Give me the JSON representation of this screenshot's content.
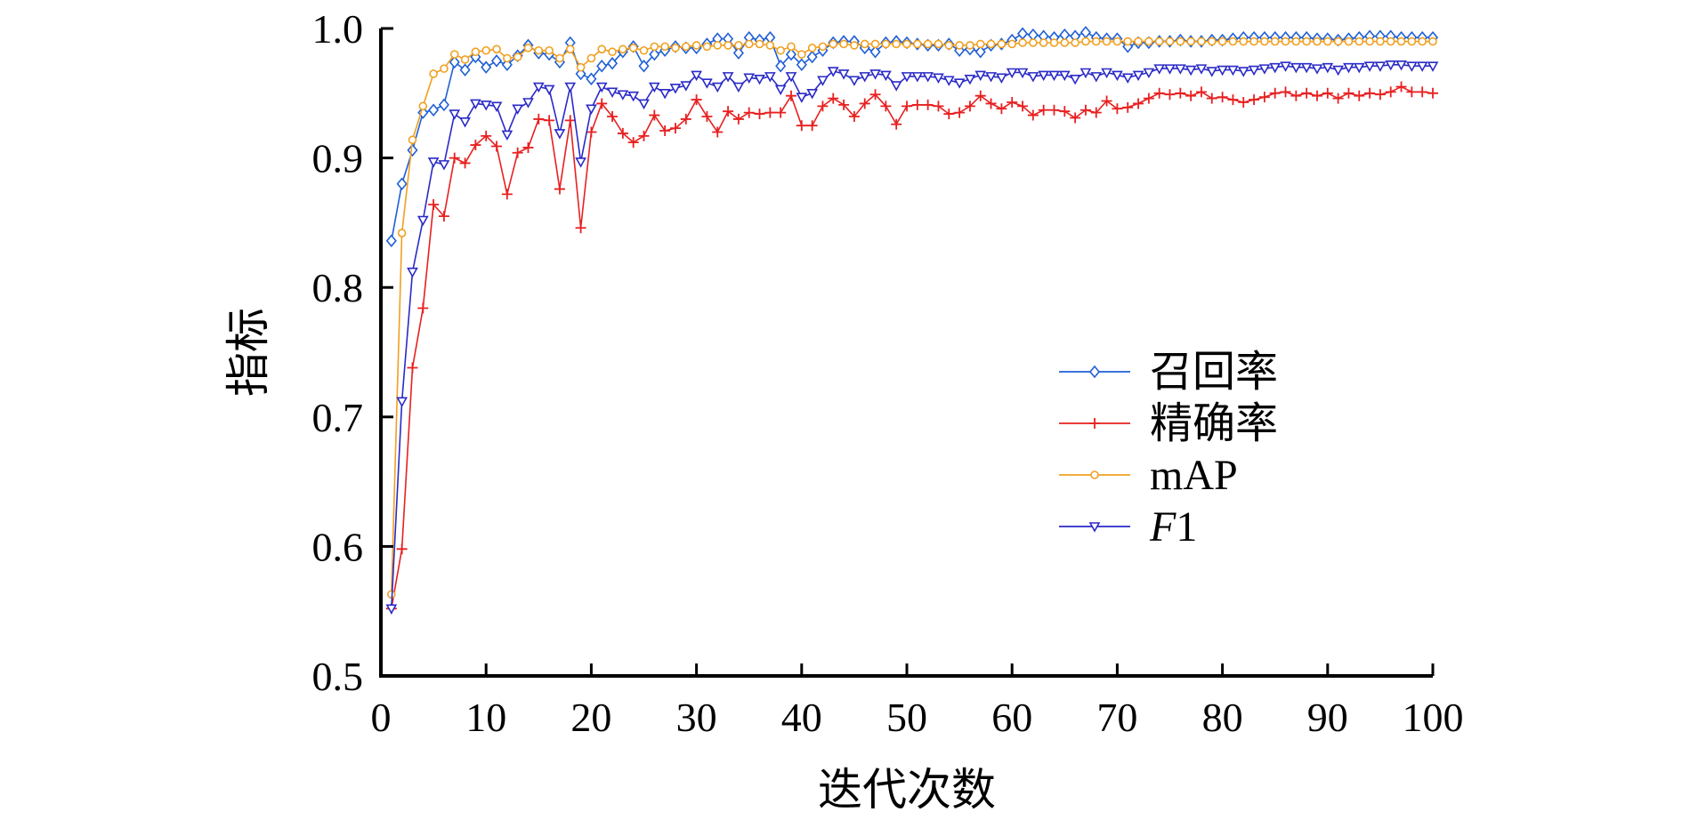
{
  "chart_data": {
    "type": "line",
    "title": "",
    "xlabel": "迭代次数",
    "ylabel": "指标",
    "xlim": [
      0,
      100
    ],
    "ylim": [
      0.5,
      1.0
    ],
    "x_ticks": [
      "0",
      "10",
      "20",
      "30",
      "40",
      "50",
      "60",
      "70",
      "80",
      "90",
      "100"
    ],
    "y_ticks": [
      "0.5",
      "0.6",
      "0.7",
      "0.8",
      "0.9",
      "1.0"
    ],
    "grid": false,
    "legend_position": "center-right",
    "x": [
      1,
      2,
      3,
      4,
      5,
      6,
      7,
      8,
      9,
      10,
      11,
      12,
      13,
      14,
      15,
      16,
      17,
      18,
      19,
      20,
      21,
      22,
      23,
      24,
      25,
      26,
      27,
      28,
      29,
      30,
      31,
      32,
      33,
      34,
      35,
      36,
      37,
      38,
      39,
      40,
      41,
      42,
      43,
      44,
      45,
      46,
      47,
      48,
      49,
      50,
      51,
      52,
      53,
      54,
      55,
      56,
      57,
      58,
      59,
      60,
      61,
      62,
      63,
      64,
      65,
      66,
      67,
      68,
      69,
      70,
      71,
      72,
      73,
      74,
      75,
      76,
      77,
      78,
      79,
      80,
      81,
      82,
      83,
      84,
      85,
      86,
      87,
      88,
      89,
      90,
      91,
      92,
      93,
      94,
      95,
      96,
      97,
      98,
      99,
      100
    ],
    "series": [
      {
        "name": "召回率",
        "color": "#1f5fd6",
        "marker": "diamond",
        "values": [
          0.836,
          0.88,
          0.906,
          0.935,
          0.937,
          0.941,
          0.974,
          0.968,
          0.978,
          0.97,
          0.975,
          0.972,
          0.979,
          0.987,
          0.981,
          0.98,
          0.974,
          0.989,
          0.965,
          0.961,
          0.971,
          0.973,
          0.982,
          0.986,
          0.971,
          0.98,
          0.983,
          0.986,
          0.985,
          0.985,
          0.988,
          0.992,
          0.992,
          0.981,
          0.993,
          0.991,
          0.993,
          0.971,
          0.98,
          0.972,
          0.978,
          0.983,
          0.989,
          0.99,
          0.99,
          0.985,
          0.982,
          0.989,
          0.99,
          0.989,
          0.988,
          0.987,
          0.987,
          0.988,
          0.983,
          0.984,
          0.982,
          0.987,
          0.988,
          0.991,
          0.996,
          0.995,
          0.994,
          0.993,
          0.995,
          0.994,
          0.997,
          0.993,
          0.992,
          0.992,
          0.986,
          0.989,
          0.989,
          0.99,
          0.99,
          0.991,
          0.99,
          0.99,
          0.991,
          0.991,
          0.992,
          0.993,
          0.993,
          0.993,
          0.993,
          0.993,
          0.993,
          0.993,
          0.992,
          0.992,
          0.991,
          0.992,
          0.993,
          0.994,
          0.994,
          0.994,
          0.993,
          0.993,
          0.993,
          0.993
        ]
      },
      {
        "name": "精确率",
        "color": "#e82020",
        "marker": "plus",
        "values": [
          0.552,
          0.598,
          0.738,
          0.784,
          0.864,
          0.855,
          0.9,
          0.896,
          0.91,
          0.917,
          0.909,
          0.872,
          0.904,
          0.908,
          0.93,
          0.929,
          0.876,
          0.929,
          0.846,
          0.92,
          0.942,
          0.932,
          0.919,
          0.912,
          0.917,
          0.933,
          0.921,
          0.923,
          0.93,
          0.945,
          0.932,
          0.92,
          0.936,
          0.93,
          0.935,
          0.934,
          0.935,
          0.935,
          0.948,
          0.925,
          0.925,
          0.94,
          0.946,
          0.941,
          0.932,
          0.942,
          0.949,
          0.94,
          0.926,
          0.94,
          0.941,
          0.941,
          0.94,
          0.934,
          0.935,
          0.94,
          0.948,
          0.942,
          0.938,
          0.943,
          0.94,
          0.933,
          0.937,
          0.937,
          0.936,
          0.931,
          0.937,
          0.935,
          0.944,
          0.938,
          0.939,
          0.942,
          0.946,
          0.95,
          0.949,
          0.95,
          0.948,
          0.951,
          0.946,
          0.947,
          0.945,
          0.943,
          0.945,
          0.947,
          0.95,
          0.951,
          0.948,
          0.95,
          0.948,
          0.95,
          0.946,
          0.95,
          0.948,
          0.95,
          0.949,
          0.951,
          0.955,
          0.951,
          0.951,
          0.95
        ]
      },
      {
        "name": "mAP",
        "color": "#f0a020",
        "marker": "circle",
        "values": [
          0.563,
          0.842,
          0.914,
          0.94,
          0.965,
          0.969,
          0.98,
          0.976,
          0.982,
          0.983,
          0.984,
          0.977,
          0.978,
          0.985,
          0.983,
          0.983,
          0.977,
          0.984,
          0.97,
          0.977,
          0.984,
          0.982,
          0.984,
          0.985,
          0.983,
          0.986,
          0.986,
          0.985,
          0.986,
          0.987,
          0.986,
          0.987,
          0.987,
          0.987,
          0.988,
          0.988,
          0.987,
          0.983,
          0.986,
          0.98,
          0.985,
          0.986,
          0.988,
          0.988,
          0.987,
          0.988,
          0.988,
          0.988,
          0.988,
          0.988,
          0.988,
          0.988,
          0.988,
          0.987,
          0.987,
          0.987,
          0.988,
          0.988,
          0.988,
          0.988,
          0.989,
          0.989,
          0.989,
          0.989,
          0.989,
          0.989,
          0.99,
          0.99,
          0.99,
          0.99,
          0.99,
          0.99,
          0.99,
          0.99,
          0.99,
          0.99,
          0.99,
          0.99,
          0.99,
          0.99,
          0.99,
          0.99,
          0.99,
          0.99,
          0.99,
          0.99,
          0.99,
          0.99,
          0.99,
          0.99,
          0.99,
          0.99,
          0.99,
          0.99,
          0.99,
          0.99,
          0.99,
          0.99,
          0.99,
          0.99
        ]
      },
      {
        "name": "F1",
        "color": "#2a2ac8",
        "marker": "triangle-down",
        "values": [
          0.552,
          0.712,
          0.812,
          0.852,
          0.897,
          0.895,
          0.934,
          0.928,
          0.942,
          0.941,
          0.94,
          0.918,
          0.938,
          0.943,
          0.955,
          0.953,
          0.919,
          0.955,
          0.897,
          0.938,
          0.955,
          0.951,
          0.949,
          0.948,
          0.942,
          0.955,
          0.95,
          0.954,
          0.956,
          0.964,
          0.958,
          0.955,
          0.963,
          0.955,
          0.962,
          0.961,
          0.963,
          0.953,
          0.963,
          0.947,
          0.95,
          0.96,
          0.967,
          0.965,
          0.96,
          0.963,
          0.965,
          0.964,
          0.956,
          0.963,
          0.963,
          0.963,
          0.962,
          0.96,
          0.958,
          0.961,
          0.964,
          0.963,
          0.962,
          0.966,
          0.966,
          0.963,
          0.964,
          0.964,
          0.964,
          0.961,
          0.966,
          0.963,
          0.966,
          0.964,
          0.962,
          0.964,
          0.966,
          0.969,
          0.969,
          0.969,
          0.968,
          0.969,
          0.967,
          0.968,
          0.968,
          0.967,
          0.968,
          0.969,
          0.97,
          0.971,
          0.97,
          0.97,
          0.969,
          0.97,
          0.968,
          0.97,
          0.97,
          0.971,
          0.971,
          0.972,
          0.972,
          0.971,
          0.971,
          0.971
        ]
      }
    ]
  }
}
